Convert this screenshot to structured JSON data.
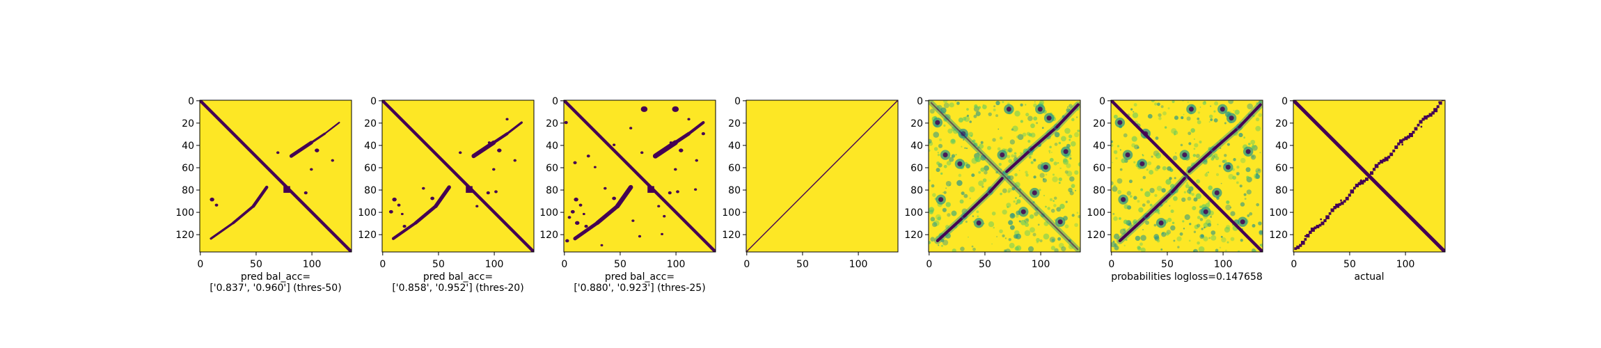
{
  "chart_data": [
    {
      "type": "heatmap",
      "id": "p1",
      "caption": [
        "pred bal_acc=",
        "['0.837', '0.960'] (thres-50)"
      ],
      "xticks": [
        "0",
        "50",
        "100"
      ],
      "yticks": [
        "0",
        "20",
        "40",
        "60",
        "80",
        "100",
        "120"
      ],
      "xlim": [
        0,
        136
      ],
      "ylim": [
        136,
        0
      ],
      "colormap": "viridis-binary",
      "pattern": "thresholded prediction"
    },
    {
      "type": "heatmap",
      "id": "p2",
      "caption": [
        "pred bal_acc=",
        "['0.858', '0.952'] (thres-20)"
      ],
      "xticks": [
        "0",
        "50",
        "100"
      ],
      "yticks": [
        "0",
        "20",
        "40",
        "60",
        "80",
        "100",
        "120"
      ],
      "xlim": [
        0,
        136
      ],
      "ylim": [
        136,
        0
      ],
      "colormap": "viridis-binary",
      "pattern": "thresholded prediction"
    },
    {
      "type": "heatmap",
      "id": "p3",
      "caption": [
        "pred bal_acc=",
        "['0.880', '0.923'] (thres-25)"
      ],
      "xticks": [
        "0",
        "50",
        "100"
      ],
      "yticks": [
        "0",
        "20",
        "40",
        "60",
        "80",
        "100",
        "120"
      ],
      "xlim": [
        0,
        136
      ],
      "ylim": [
        136,
        0
      ],
      "colormap": "viridis-binary",
      "pattern": "thresholded prediction"
    },
    {
      "type": "heatmap",
      "id": "p4",
      "caption": [],
      "xticks": [
        "0",
        "50",
        "100"
      ],
      "yticks": [
        "0",
        "20",
        "40",
        "60",
        "80",
        "100",
        "120"
      ],
      "xlim": [
        0,
        136
      ],
      "ylim": [
        136,
        0
      ],
      "colormap": "viridis-binary",
      "pattern": "single anti-diagonal line"
    },
    {
      "type": "heatmap",
      "id": "p5",
      "caption": [],
      "xticks": [
        "0",
        "50",
        "100"
      ],
      "yticks": [
        "0",
        "20",
        "40",
        "60",
        "80",
        "100",
        "120"
      ],
      "xlim": [
        0,
        136
      ],
      "ylim": [
        136,
        0
      ],
      "colormap": "viridis",
      "pattern": "continuous probabilities"
    },
    {
      "type": "heatmap",
      "id": "p6",
      "caption": [
        "probabilities logloss=0.147658"
      ],
      "xticks": [
        "0",
        "50",
        "100"
      ],
      "yticks": [
        "0",
        "20",
        "40",
        "60",
        "80",
        "100",
        "120"
      ],
      "xlim": [
        0,
        136
      ],
      "ylim": [
        136,
        0
      ],
      "colormap": "viridis",
      "pattern": "continuous probabilities"
    },
    {
      "type": "heatmap",
      "id": "p7",
      "caption": [
        "actual"
      ],
      "xticks": [
        "0",
        "50",
        "100"
      ],
      "yticks": [
        "0",
        "20",
        "40",
        "60",
        "80",
        "100",
        "120"
      ],
      "xlim": [
        0,
        136
      ],
      "ylim": [
        136,
        0
      ],
      "colormap": "viridis-binary",
      "pattern": "ground-truth contact map"
    }
  ],
  "colors": {
    "low": "#440154",
    "mid": "#21918c",
    "light": "#5ec962",
    "high": "#fde725"
  }
}
